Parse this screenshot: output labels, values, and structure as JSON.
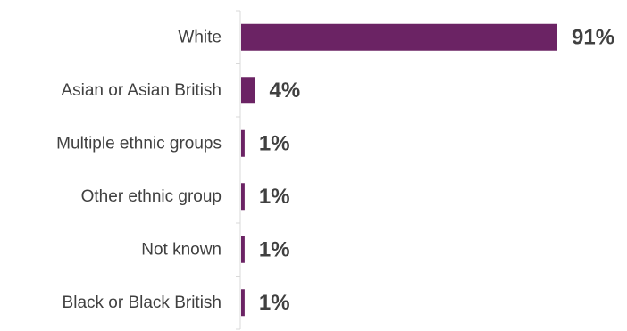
{
  "colors": {
    "bar": "#6b2364",
    "axis": "#d9d9d9",
    "text": "#404040"
  },
  "chart_data": {
    "type": "bar",
    "orientation": "horizontal",
    "categories": [
      "White",
      "Asian or Asian British",
      "Multiple ethnic groups",
      "Other ethnic group",
      "Not known",
      "Black or Black British"
    ],
    "values": [
      91,
      4,
      1,
      1,
      1,
      1
    ],
    "value_labels": [
      "91%",
      "4%",
      "1%",
      "1%",
      "1%",
      "1%"
    ],
    "xlim": [
      0,
      100
    ],
    "grid": false,
    "legend": "none"
  }
}
